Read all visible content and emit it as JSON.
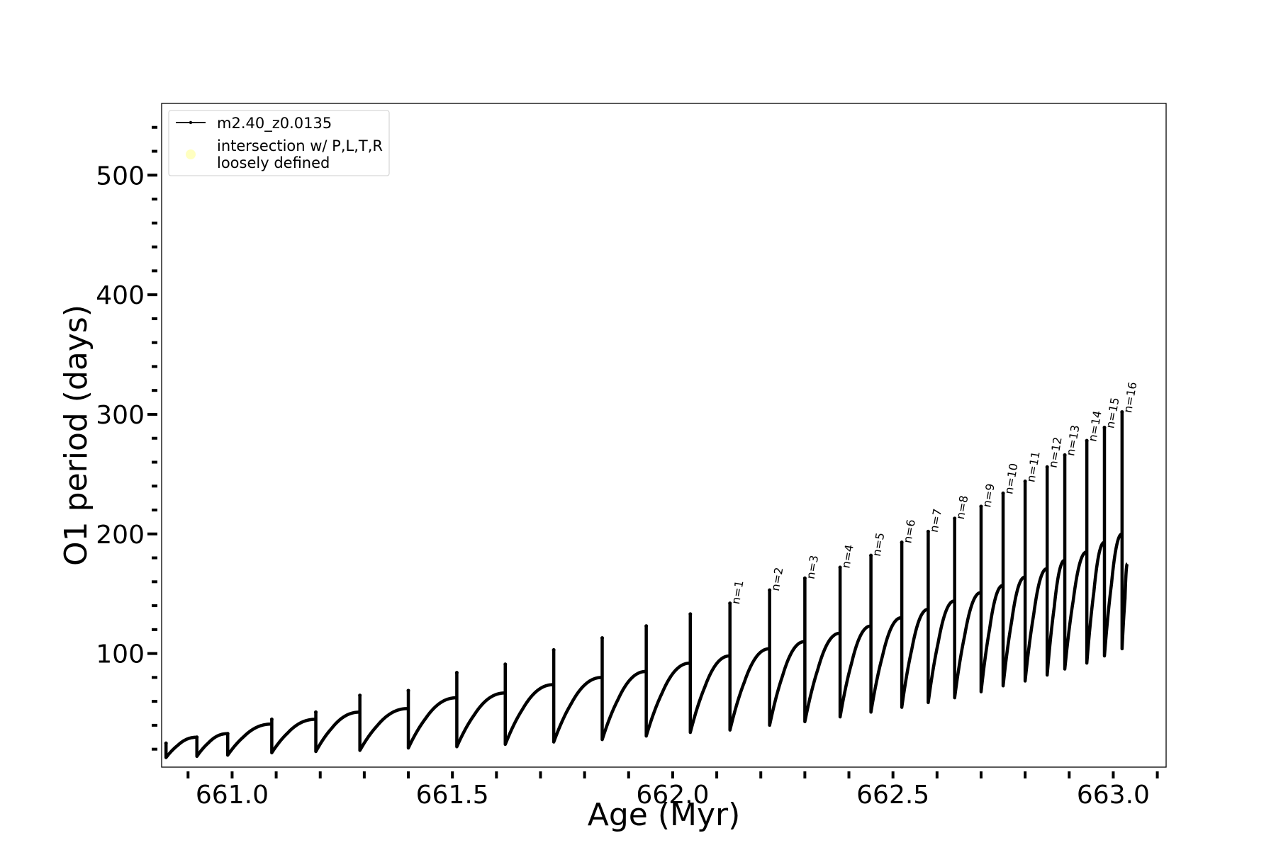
{
  "chart_data": {
    "type": "line",
    "title": "",
    "xlabel": "Age (Myr)",
    "ylabel": "O1 period (days)",
    "xlim": [
      660.84,
      663.12
    ],
    "ylim": [
      5,
      560
    ],
    "x_ticks": [
      660.9,
      661.0,
      661.1,
      661.2,
      661.3,
      661.4,
      661.5,
      661.6,
      661.7,
      661.8,
      661.9,
      662.0,
      662.1,
      662.2,
      662.3,
      662.4,
      662.5,
      662.6,
      662.7,
      662.8,
      662.9,
      663.0,
      663.1
    ],
    "x_tick_labels": [
      {
        "value": 661.0,
        "label": "661.0"
      },
      {
        "value": 661.5,
        "label": "661.5"
      },
      {
        "value": 662.0,
        "label": "662.0"
      },
      {
        "value": 662.5,
        "label": "662.5"
      },
      {
        "value": 663.0,
        "label": "663.0"
      }
    ],
    "y_ticks": [
      20,
      40,
      60,
      80,
      100,
      120,
      140,
      160,
      180,
      200,
      220,
      240,
      260,
      280,
      300,
      320,
      340,
      360,
      380,
      400,
      420,
      440,
      460,
      480,
      500,
      520,
      540
    ],
    "y_tick_labels": [
      {
        "value": 100,
        "label": "100"
      },
      {
        "value": 200,
        "label": "200"
      },
      {
        "value": 300,
        "label": "300"
      },
      {
        "value": 400,
        "label": "400"
      },
      {
        "value": 500,
        "label": "500"
      }
    ],
    "grid": false,
    "legend": {
      "position": "top-left",
      "entries": [
        {
          "label": "m2.40_z0.0135",
          "marker": "line",
          "color": "#000000"
        },
        {
          "label_lines": [
            "intersection w/ P,L,T,R",
            "loosely defined"
          ],
          "marker": "circle",
          "color": "#ffffc0"
        }
      ]
    },
    "series": [
      {
        "name": "m2.40_z0.0135",
        "color": "#000000",
        "pulses": [
          {
            "age": 660.85,
            "spike": 25,
            "dip": 13,
            "peak": 30
          },
          {
            "age": 660.92,
            "spike": 30,
            "dip": 14,
            "peak": 33
          },
          {
            "age": 660.99,
            "spike": 33,
            "dip": 15,
            "peak": 41
          },
          {
            "age": 661.09,
            "spike": 45,
            "dip": 17,
            "peak": 45
          },
          {
            "age": 661.19,
            "spike": 51,
            "dip": 18,
            "peak": 51
          },
          {
            "age": 661.29,
            "spike": 65,
            "dip": 19,
            "peak": 54
          },
          {
            "age": 661.4,
            "spike": 69,
            "dip": 21,
            "peak": 63
          },
          {
            "age": 661.51,
            "spike": 84,
            "dip": 22,
            "peak": 67
          },
          {
            "age": 661.62,
            "spike": 91,
            "dip": 24,
            "peak": 74
          },
          {
            "age": 661.73,
            "spike": 103,
            "dip": 26,
            "peak": 80
          },
          {
            "age": 661.84,
            "spike": 113,
            "dip": 28,
            "peak": 85
          },
          {
            "age": 661.94,
            "spike": 123,
            "dip": 31,
            "peak": 92
          },
          {
            "age": 662.04,
            "spike": 133,
            "dip": 34,
            "peak": 98
          },
          {
            "age": 662.13,
            "spike": 142,
            "dip": 36,
            "peak": 104
          },
          {
            "age": 662.22,
            "spike": 153,
            "dip": 40,
            "peak": 110
          },
          {
            "age": 662.3,
            "spike": 163,
            "dip": 43,
            "peak": 117
          },
          {
            "age": 662.38,
            "spike": 172,
            "dip": 47,
            "peak": 123
          },
          {
            "age": 662.45,
            "spike": 182,
            "dip": 51,
            "peak": 130
          },
          {
            "age": 662.52,
            "spike": 193,
            "dip": 55,
            "peak": 137
          },
          {
            "age": 662.58,
            "spike": 202,
            "dip": 59,
            "peak": 144
          },
          {
            "age": 662.64,
            "spike": 213,
            "dip": 63,
            "peak": 151
          },
          {
            "age": 662.7,
            "spike": 223,
            "dip": 68,
            "peak": 157
          },
          {
            "age": 662.75,
            "spike": 234,
            "dip": 73,
            "peak": 164
          },
          {
            "age": 662.8,
            "spike": 244,
            "dip": 77,
            "peak": 171
          },
          {
            "age": 662.85,
            "spike": 256,
            "dip": 82,
            "peak": 178
          },
          {
            "age": 662.89,
            "spike": 266,
            "dip": 87,
            "peak": 185
          },
          {
            "age": 662.94,
            "spike": 278,
            "dip": 92,
            "peak": 193
          },
          {
            "age": 662.98,
            "spike": 289,
            "dip": 98,
            "peak": 200
          },
          {
            "age": 663.02,
            "spike": 302,
            "dip": 104,
            "peak": 175
          }
        ]
      }
    ],
    "annotations": [
      {
        "text": "n=1",
        "x": 662.13,
        "y": 142
      },
      {
        "text": "n=2",
        "x": 662.22,
        "y": 153
      },
      {
        "text": "n=3",
        "x": 662.3,
        "y": 163
      },
      {
        "text": "n=4",
        "x": 662.38,
        "y": 172
      },
      {
        "text": "n=5",
        "x": 662.45,
        "y": 182
      },
      {
        "text": "n=6",
        "x": 662.52,
        "y": 193
      },
      {
        "text": "n=7",
        "x": 662.58,
        "y": 202
      },
      {
        "text": "n=8",
        "x": 662.64,
        "y": 213
      },
      {
        "text": "n=9",
        "x": 662.7,
        "y": 223
      },
      {
        "text": "n=10",
        "x": 662.75,
        "y": 234
      },
      {
        "text": "n=11",
        "x": 662.8,
        "y": 244
      },
      {
        "text": "n=12",
        "x": 662.85,
        "y": 256
      },
      {
        "text": "n=13",
        "x": 662.89,
        "y": 266
      },
      {
        "text": "n=14",
        "x": 662.94,
        "y": 278
      },
      {
        "text": "n=15",
        "x": 662.98,
        "y": 289
      },
      {
        "text": "n=16",
        "x": 663.02,
        "y": 302
      }
    ]
  }
}
